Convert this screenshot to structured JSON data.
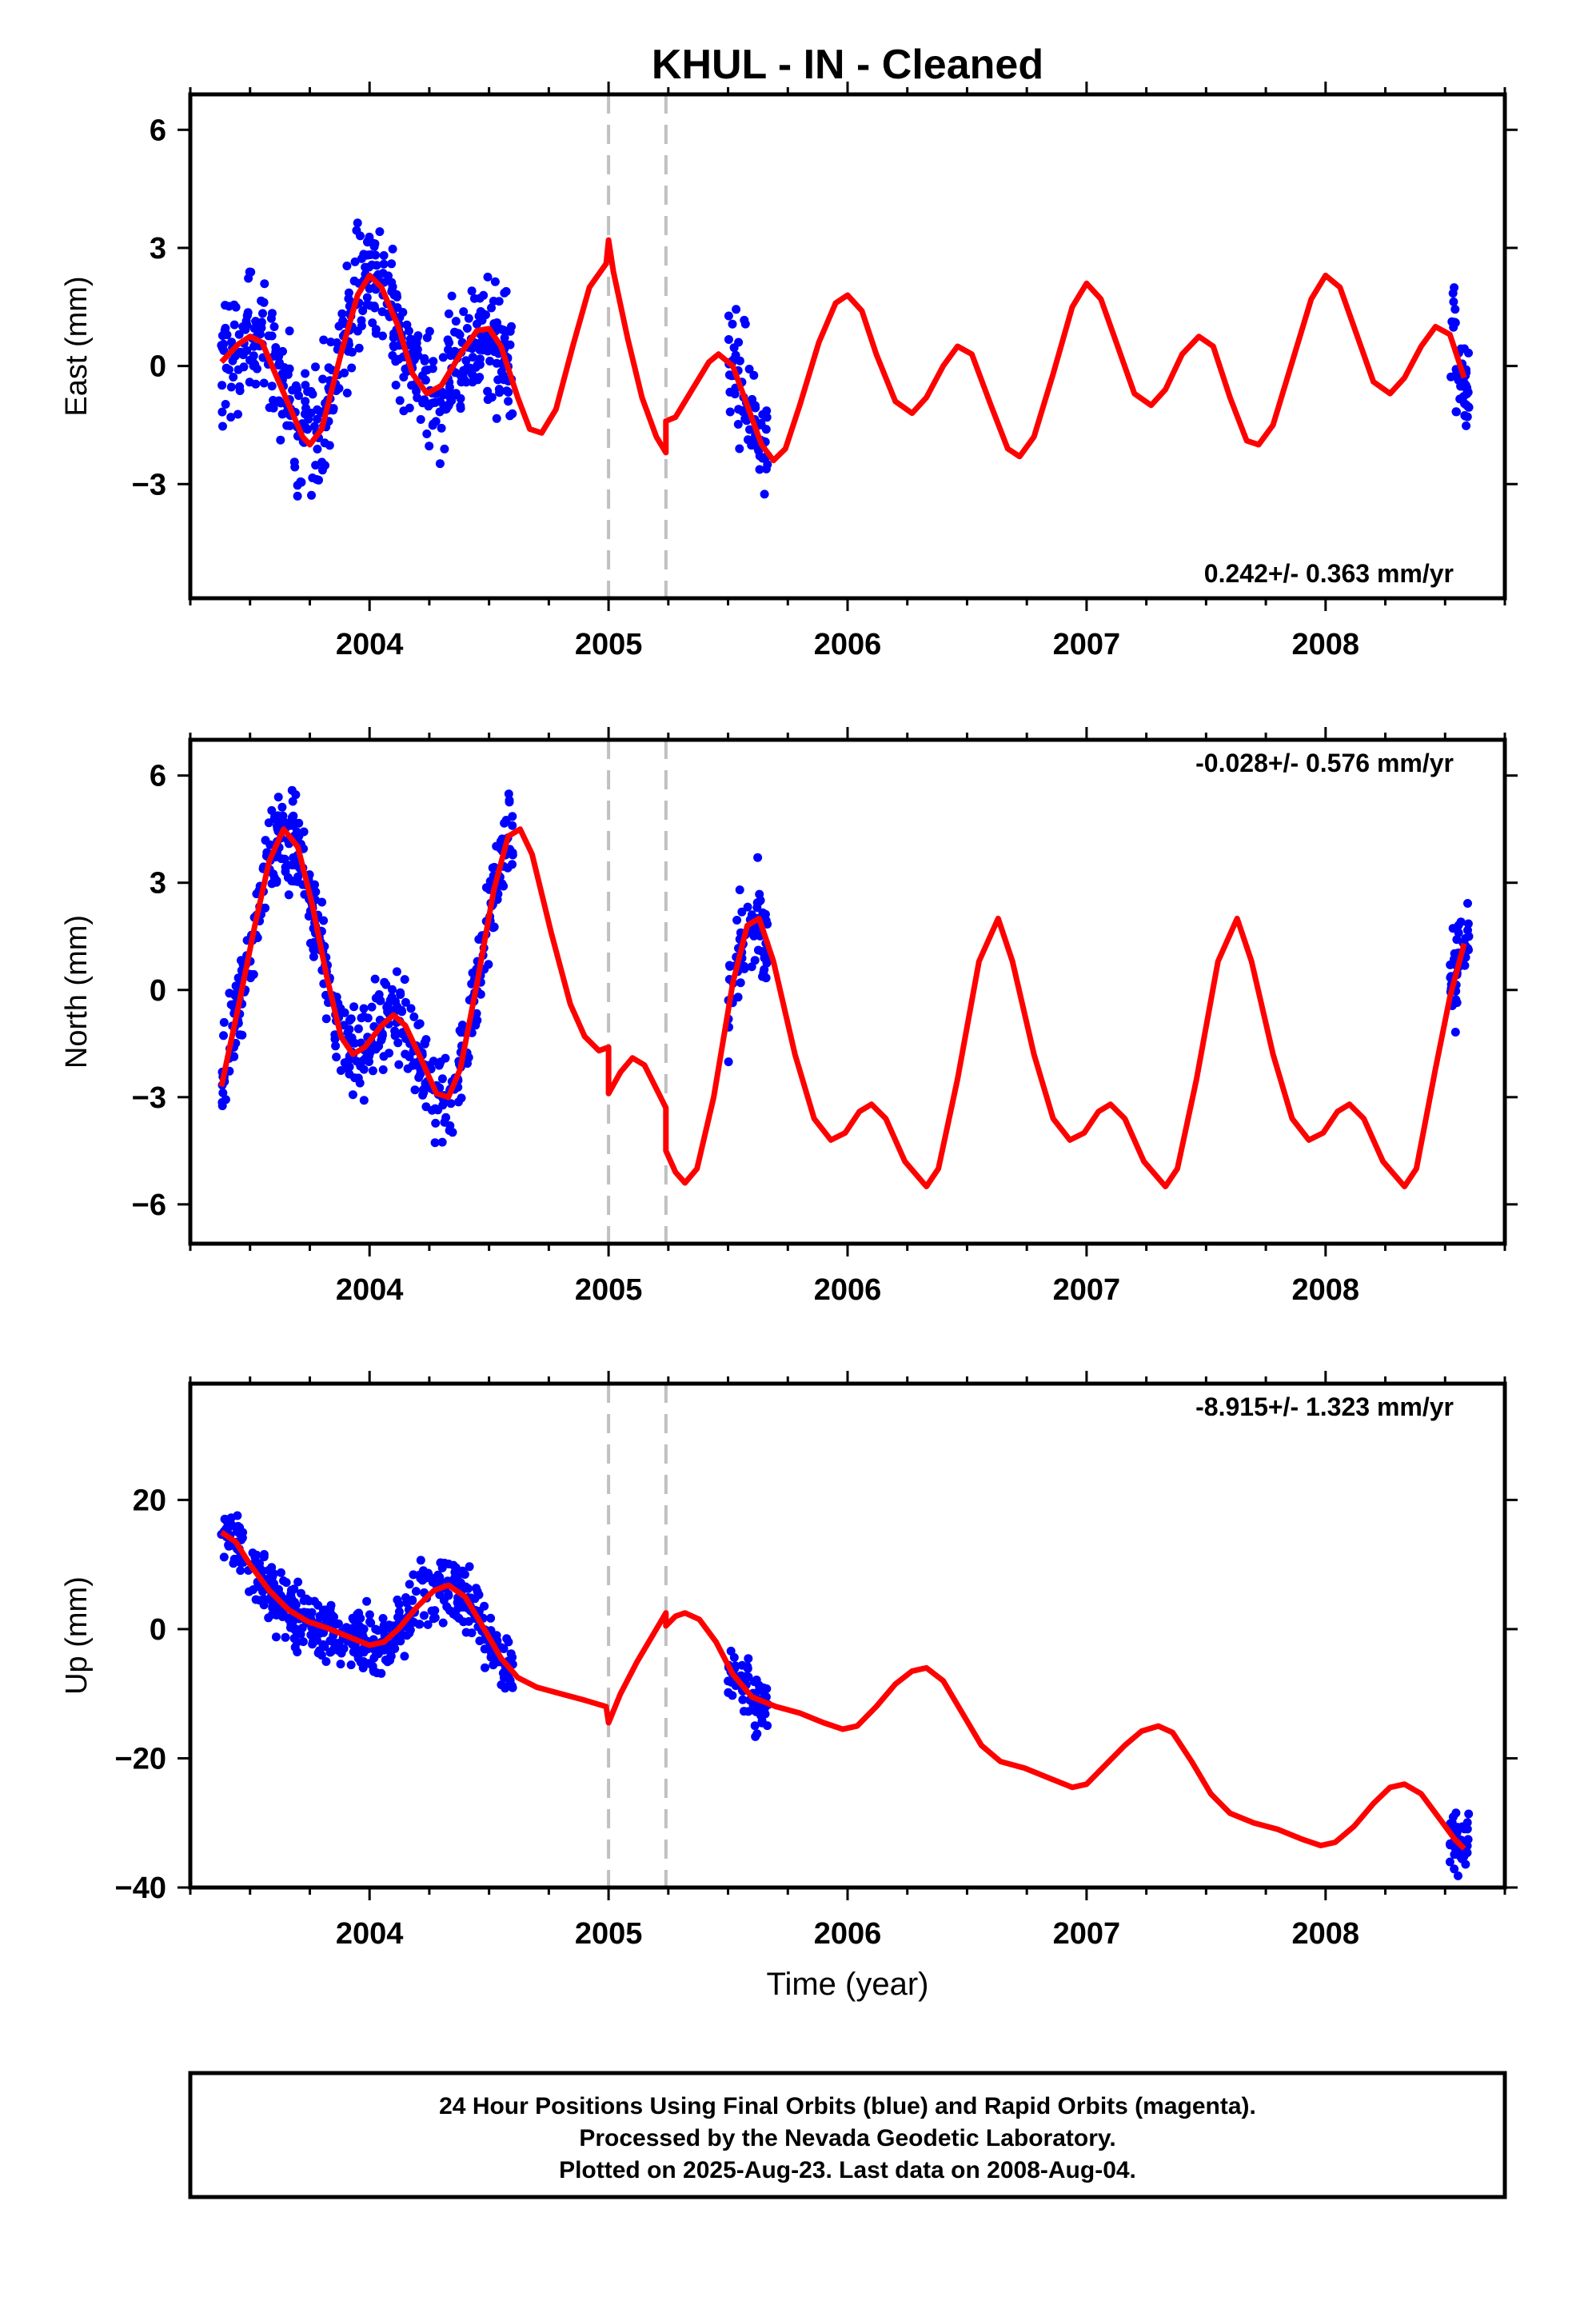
{
  "title": "KHUL  - IN - Cleaned",
  "xlabel": "Time (year)",
  "footer": [
    "24 Hour Positions Using Final Orbits (blue) and Rapid Orbits (magenta).",
    "Processed by the Nevada Geodetic Laboratory.",
    "Plotted on 2025-Aug-23. Last data on 2008-Aug-04."
  ],
  "colors": {
    "data": "#0000ff",
    "model": "#ff0000",
    "steps": "#c0c0c0",
    "frame": "#000000"
  },
  "chart_data": [
    {
      "type": "scatter",
      "ylabel": "East (mm)",
      "rate": "0.242+/- 0.363 mm/yr",
      "rate_position": "bottom-right",
      "xlim": [
        2003.25,
        2008.75
      ],
      "ylim": [
        -5.9,
        6.9
      ],
      "xticks": [
        2004,
        2005,
        2006,
        2007,
        2008
      ],
      "xtick_labels": [
        "2004",
        "2005",
        "2006",
        "2007",
        "2008"
      ],
      "yticks": [
        -3,
        0,
        3,
        6
      ],
      "ytick_labels": [
        "−3",
        "0",
        "3",
        "6"
      ],
      "steps": [
        2005.0,
        2005.24
      ],
      "model": [
        [
          2003.38,
          0.1
        ],
        [
          2003.45,
          0.55
        ],
        [
          2003.5,
          0.75
        ],
        [
          2003.55,
          0.6
        ],
        [
          2003.62,
          -0.4
        ],
        [
          2003.72,
          -1.8
        ],
        [
          2003.75,
          -2.0
        ],
        [
          2003.8,
          -1.6
        ],
        [
          2003.88,
          0.3
        ],
        [
          2003.95,
          1.8
        ],
        [
          2004.0,
          2.3
        ],
        [
          2004.05,
          2.0
        ],
        [
          2004.12,
          1.0
        ],
        [
          2004.18,
          -0.2
        ],
        [
          2004.24,
          -0.7
        ],
        [
          2004.3,
          -0.5
        ],
        [
          2004.38,
          0.3
        ],
        [
          2004.45,
          0.9
        ],
        [
          2004.5,
          0.95
        ],
        [
          2004.55,
          0.5
        ],
        [
          2004.62,
          -0.8
        ],
        [
          2004.67,
          -1.6
        ],
        [
          2004.72,
          -1.7
        ],
        [
          2004.78,
          -1.1
        ],
        [
          2004.85,
          0.5
        ],
        [
          2004.92,
          2.0
        ],
        [
          2004.99,
          2.6
        ],
        [
          2005.0,
          3.2
        ],
        [
          2005.02,
          2.4
        ],
        [
          2005.08,
          0.7
        ],
        [
          2005.14,
          -0.8
        ],
        [
          2005.2,
          -1.8
        ],
        [
          2005.24,
          -2.2
        ],
        [
          2005.24,
          -1.4
        ],
        [
          2005.28,
          -1.3
        ],
        [
          2005.35,
          -0.6
        ],
        [
          2005.42,
          0.1
        ],
        [
          2005.46,
          0.3
        ],
        [
          2005.52,
          0.0
        ],
        [
          2005.58,
          -1.0
        ],
        [
          2005.64,
          -2.0
        ],
        [
          2005.69,
          -2.4
        ],
        [
          2005.74,
          -2.1
        ],
        [
          2005.8,
          -1.0
        ],
        [
          2005.88,
          0.6
        ],
        [
          2005.95,
          1.6
        ],
        [
          2006.0,
          1.8
        ],
        [
          2006.06,
          1.4
        ],
        [
          2006.12,
          0.3
        ],
        [
          2006.2,
          -0.9
        ],
        [
          2006.27,
          -1.2
        ],
        [
          2006.33,
          -0.8
        ],
        [
          2006.4,
          0.0
        ],
        [
          2006.46,
          0.5
        ],
        [
          2006.52,
          0.3
        ],
        [
          2006.6,
          -1.0
        ],
        [
          2006.67,
          -2.1
        ],
        [
          2006.72,
          -2.3
        ],
        [
          2006.78,
          -1.8
        ],
        [
          2006.86,
          -0.2
        ],
        [
          2006.94,
          1.5
        ],
        [
          2007.0,
          2.1
        ],
        [
          2007.06,
          1.7
        ],
        [
          2007.13,
          0.5
        ],
        [
          2007.2,
          -0.7
        ],
        [
          2007.27,
          -1.0
        ],
        [
          2007.33,
          -0.6
        ],
        [
          2007.4,
          0.3
        ],
        [
          2007.47,
          0.75
        ],
        [
          2007.53,
          0.5
        ],
        [
          2007.6,
          -0.8
        ],
        [
          2007.67,
          -1.9
        ],
        [
          2007.72,
          -2.0
        ],
        [
          2007.78,
          -1.5
        ],
        [
          2007.86,
          0.1
        ],
        [
          2007.94,
          1.7
        ],
        [
          2008.0,
          2.3
        ],
        [
          2008.06,
          2.0
        ],
        [
          2008.13,
          0.8
        ],
        [
          2008.2,
          -0.4
        ],
        [
          2008.27,
          -0.7
        ],
        [
          2008.33,
          -0.3
        ],
        [
          2008.4,
          0.5
        ],
        [
          2008.46,
          1.0
        ],
        [
          2008.52,
          0.8
        ],
        [
          2008.58,
          -0.3
        ]
      ]
    },
    {
      "type": "scatter",
      "ylabel": "North (mm)",
      "rate": "-0.028+/- 0.576 mm/yr",
      "rate_position": "top-right",
      "xlim": [
        2003.25,
        2008.75
      ],
      "ylim": [
        -7.1,
        7.0
      ],
      "xticks": [
        2004,
        2005,
        2006,
        2007,
        2008
      ],
      "xtick_labels": [
        "2004",
        "2005",
        "2006",
        "2007",
        "2008"
      ],
      "yticks": [
        -6,
        -3,
        0,
        3,
        6
      ],
      "ytick_labels": [
        "−6",
        "−3",
        "0",
        "3",
        "6"
      ],
      "steps": [
        2005.0,
        2005.24
      ],
      "model": [
        [
          2003.38,
          -2.7
        ],
        [
          2003.45,
          -0.5
        ],
        [
          2003.52,
          1.8
        ],
        [
          2003.58,
          3.6
        ],
        [
          2003.64,
          4.5
        ],
        [
          2003.7,
          4.0
        ],
        [
          2003.76,
          2.4
        ],
        [
          2003.82,
          0.4
        ],
        [
          2003.88,
          -1.3
        ],
        [
          2003.93,
          -1.8
        ],
        [
          2003.98,
          -1.6
        ],
        [
          2004.05,
          -1.0
        ],
        [
          2004.1,
          -0.7
        ],
        [
          2004.15,
          -1.0
        ],
        [
          2004.22,
          -2.0
        ],
        [
          2004.28,
          -2.9
        ],
        [
          2004.33,
          -3.0
        ],
        [
          2004.38,
          -2.2
        ],
        [
          2004.45,
          0.2
        ],
        [
          2004.52,
          2.8
        ],
        [
          2004.58,
          4.3
        ],
        [
          2004.63,
          4.5
        ],
        [
          2004.68,
          3.8
        ],
        [
          2004.76,
          1.6
        ],
        [
          2004.84,
          -0.4
        ],
        [
          2004.9,
          -1.3
        ],
        [
          2004.96,
          -1.7
        ],
        [
          2005.0,
          -1.6
        ],
        [
          2005.0,
          -2.9
        ],
        [
          2005.05,
          -2.3
        ],
        [
          2005.1,
          -1.9
        ],
        [
          2005.15,
          -2.1
        ],
        [
          2005.21,
          -2.9
        ],
        [
          2005.24,
          -3.3
        ],
        [
          2005.24,
          -4.5
        ],
        [
          2005.28,
          -5.1
        ],
        [
          2005.32,
          -5.4
        ],
        [
          2005.37,
          -5.0
        ],
        [
          2005.44,
          -3.0
        ],
        [
          2005.52,
          0.2
        ],
        [
          2005.58,
          1.8
        ],
        [
          2005.63,
          2.0
        ],
        [
          2005.69,
          0.8
        ],
        [
          2005.78,
          -1.8
        ],
        [
          2005.86,
          -3.6
        ],
        [
          2005.93,
          -4.2
        ],
        [
          2005.99,
          -4.0
        ],
        [
          2006.05,
          -3.4
        ],
        [
          2006.1,
          -3.2
        ],
        [
          2006.16,
          -3.6
        ],
        [
          2006.24,
          -4.8
        ],
        [
          2006.33,
          -5.5
        ],
        [
          2006.38,
          -5.0
        ],
        [
          2006.46,
          -2.5
        ],
        [
          2006.55,
          0.8
        ],
        [
          2006.63,
          2.0
        ],
        [
          2006.69,
          0.8
        ],
        [
          2006.78,
          -1.8
        ],
        [
          2006.86,
          -3.6
        ],
        [
          2006.93,
          -4.2
        ],
        [
          2006.99,
          -4.0
        ],
        [
          2007.05,
          -3.4
        ],
        [
          2007.1,
          -3.2
        ],
        [
          2007.16,
          -3.6
        ],
        [
          2007.24,
          -4.8
        ],
        [
          2007.33,
          -5.5
        ],
        [
          2007.38,
          -5.0
        ],
        [
          2007.46,
          -2.5
        ],
        [
          2007.55,
          0.8
        ],
        [
          2007.63,
          2.0
        ],
        [
          2007.69,
          0.8
        ],
        [
          2007.78,
          -1.8
        ],
        [
          2007.86,
          -3.6
        ],
        [
          2007.93,
          -4.2
        ],
        [
          2007.99,
          -4.0
        ],
        [
          2008.05,
          -3.4
        ],
        [
          2008.1,
          -3.2
        ],
        [
          2008.16,
          -3.6
        ],
        [
          2008.24,
          -4.8
        ],
        [
          2008.33,
          -5.5
        ],
        [
          2008.38,
          -5.0
        ],
        [
          2008.46,
          -2.2
        ],
        [
          2008.52,
          -0.2
        ],
        [
          2008.58,
          1.3
        ]
      ]
    },
    {
      "type": "scatter",
      "ylabel": "Up (mm)",
      "rate": "-8.915+/- 1.323 mm/yr",
      "rate_position": "top-right",
      "xlim": [
        2003.25,
        2008.75
      ],
      "ylim": [
        -40,
        38
      ],
      "xticks": [
        2004,
        2005,
        2006,
        2007,
        2008
      ],
      "xtick_labels": [
        "2004",
        "2005",
        "2006",
        "2007",
        "2008"
      ],
      "yticks": [
        -40,
        -20,
        0,
        20
      ],
      "ytick_labels": [
        "−40",
        "−20",
        "0",
        "20"
      ],
      "steps": [
        2005.0,
        2005.24
      ],
      "model": [
        [
          2003.38,
          15
        ],
        [
          2003.44,
          13.5
        ],
        [
          2003.5,
          10
        ],
        [
          2003.58,
          6
        ],
        [
          2003.66,
          3
        ],
        [
          2003.74,
          1.2
        ],
        [
          2003.82,
          0.2
        ],
        [
          2003.9,
          -1
        ],
        [
          2004.0,
          -2.5
        ],
        [
          2004.06,
          -2
        ],
        [
          2004.12,
          0
        ],
        [
          2004.2,
          3.5
        ],
        [
          2004.27,
          6
        ],
        [
          2004.33,
          6.8
        ],
        [
          2004.4,
          5
        ],
        [
          2004.48,
          0
        ],
        [
          2004.55,
          -4.5
        ],
        [
          2004.62,
          -7.5
        ],
        [
          2004.7,
          -9
        ],
        [
          2004.8,
          -10
        ],
        [
          2004.9,
          -11
        ],
        [
          2004.99,
          -12
        ],
        [
          2005.0,
          -14.5
        ],
        [
          2005.05,
          -10
        ],
        [
          2005.12,
          -5
        ],
        [
          2005.2,
          0
        ],
        [
          2005.24,
          2.5
        ],
        [
          2005.24,
          0.5
        ],
        [
          2005.28,
          2
        ],
        [
          2005.32,
          2.5
        ],
        [
          2005.38,
          1.5
        ],
        [
          2005.45,
          -2
        ],
        [
          2005.52,
          -7
        ],
        [
          2005.6,
          -10.5
        ],
        [
          2005.7,
          -12
        ],
        [
          2005.8,
          -13
        ],
        [
          2005.9,
          -14.5
        ],
        [
          2005.98,
          -15.5
        ],
        [
          2006.04,
          -15
        ],
        [
          2006.12,
          -12
        ],
        [
          2006.2,
          -8.5
        ],
        [
          2006.27,
          -6.5
        ],
        [
          2006.33,
          -6
        ],
        [
          2006.4,
          -8
        ],
        [
          2006.48,
          -13
        ],
        [
          2006.56,
          -18
        ],
        [
          2006.64,
          -20.5
        ],
        [
          2006.74,
          -21.5
        ],
        [
          2006.84,
          -23
        ],
        [
          2006.94,
          -24.5
        ],
        [
          2007.0,
          -24
        ],
        [
          2007.08,
          -21
        ],
        [
          2007.16,
          -18
        ],
        [
          2007.23,
          -15.8
        ],
        [
          2007.3,
          -15
        ],
        [
          2007.36,
          -16
        ],
        [
          2007.44,
          -20.5
        ],
        [
          2007.52,
          -25.5
        ],
        [
          2007.6,
          -28.5
        ],
        [
          2007.7,
          -30
        ],
        [
          2007.8,
          -31
        ],
        [
          2007.9,
          -32.5
        ],
        [
          2007.98,
          -33.5
        ],
        [
          2008.04,
          -33
        ],
        [
          2008.12,
          -30.5
        ],
        [
          2008.2,
          -27
        ],
        [
          2008.27,
          -24.5
        ],
        [
          2008.33,
          -24
        ],
        [
          2008.4,
          -25.5
        ],
        [
          2008.48,
          -29.5
        ],
        [
          2008.54,
          -32.5
        ],
        [
          2008.58,
          -34
        ]
      ]
    }
  ]
}
